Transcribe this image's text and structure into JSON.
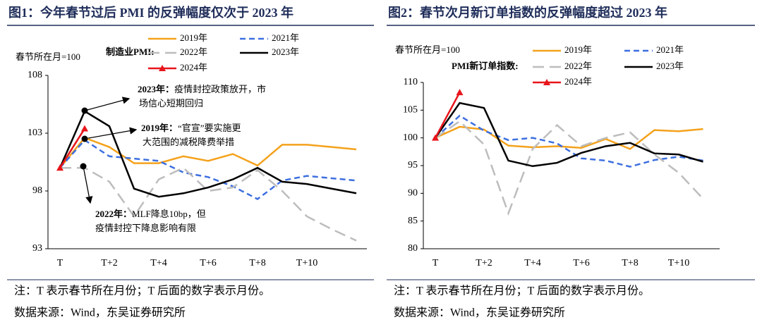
{
  "chart_data": [
    {
      "type": "line",
      "title": "图1：今年春节过后 PMI 的反弹幅度仅次于 2023 年",
      "unit_label": "春节所在月=100",
      "legend_title": "制造业PMI:",
      "categories": [
        "T",
        null,
        "T+2",
        null,
        "T+4",
        null,
        "T+6",
        null,
        "T+8",
        null,
        "T+10",
        null,
        null
      ],
      "ylim": [
        93,
        108
      ],
      "yticks": [
        93,
        98,
        103,
        108
      ],
      "series": [
        {
          "name": "2019年",
          "color": "#f4a21c",
          "dash": "none",
          "values": [
            100,
            102.6,
            101.8,
            100.4,
            100.4,
            101,
            100.6,
            101.2,
            100.2,
            102,
            102,
            101.8,
            101.6
          ]
        },
        {
          "name": "2021年",
          "color": "#3d6fe0",
          "dash": "dash",
          "values": [
            100,
            102.4,
            101.0,
            100.8,
            100.6,
            99.6,
            99.2,
            98.4,
            97.3,
            98.9,
            99.3,
            99.1,
            98.9
          ]
        },
        {
          "name": "2022年",
          "color": "#bdbdbd",
          "dash": "longdash",
          "values": [
            100,
            100,
            98.8,
            95.8,
            99,
            100,
            98,
            98.3,
            99.8,
            98,
            95.8,
            94.7,
            93.7
          ]
        },
        {
          "name": "2023年",
          "color": "#000000",
          "dash": "none",
          "values": [
            100,
            104.9,
            103.6,
            98.2,
            97.5,
            97.8,
            98.3,
            99,
            100,
            98.8,
            98.6,
            98.2,
            97.8
          ]
        },
        {
          "name": "2024年",
          "color": "#e8151b",
          "dash": "none",
          "marker": "triangle",
          "values": [
            100,
            103.4,
            null,
            null,
            null,
            null,
            null,
            null,
            null,
            null,
            null,
            null,
            null
          ]
        }
      ],
      "annotations": [
        {
          "label": "2023年：",
          "lines": [
            "疫情封控政策放开，市",
            "场信心短期回归"
          ]
        },
        {
          "label": "2019年：",
          "lines": [
            "“官宣”要实施更",
            "大范围的减税降费举措"
          ]
        },
        {
          "label": "2022年：",
          "lines": [
            "MLF降息10bp，但",
            "疫情封控下降息影响有限"
          ]
        }
      ],
      "note": "注：T 表示春节所在月份；T 后面的数字表示月份。",
      "source": "数据来源：Wind，东吴证券研究所"
    },
    {
      "type": "line",
      "title": "图2：春节次月新订单指数的反弹幅度超过 2023 年",
      "unit_label": "春节所在月=100",
      "legend_title": "PMI新订单指数:",
      "categories": [
        "T",
        null,
        "T+2",
        null,
        "T+4",
        null,
        "T+6",
        null,
        "T+8",
        null,
        "T+10",
        null
      ],
      "ylim": [
        80,
        110
      ],
      "yticks": [
        80,
        85,
        90,
        95,
        100,
        105,
        110
      ],
      "series": [
        {
          "name": "2019年",
          "color": "#f4a21c",
          "dash": "none",
          "values": [
            100,
            102,
            101.5,
            98.6,
            98.3,
            98.5,
            98.2,
            99.8,
            98,
            101.4,
            101.2,
            101.6
          ]
        },
        {
          "name": "2021年",
          "color": "#3d6fe0",
          "dash": "dash",
          "values": [
            100,
            104,
            101.3,
            99.6,
            100,
            99,
            96.3,
            95.9,
            94.8,
            96,
            96.6,
            95.9
          ]
        },
        {
          "name": "2022年",
          "color": "#bdbdbd",
          "dash": "longdash",
          "values": [
            100,
            103,
            98.8,
            86.4,
            98,
            102.3,
            98.5,
            100,
            101,
            97,
            93.7,
            89
          ]
        },
        {
          "name": "2023年",
          "color": "#000000",
          "dash": "none",
          "values": [
            100,
            106.3,
            105.4,
            95.9,
            94.9,
            95.5,
            97.3,
            98.5,
            99.1,
            97.2,
            97,
            95.7
          ]
        },
        {
          "name": "2024年",
          "color": "#e8151b",
          "dash": "none",
          "marker": "triangle",
          "values": [
            100,
            108.2,
            null,
            null,
            null,
            null,
            null,
            null,
            null,
            null,
            null,
            null
          ]
        }
      ],
      "note": "注：T 表示春节所在月份；T 后面的数字表示月份。",
      "source": "数据来源：Wind，东吴证券研究所"
    }
  ]
}
